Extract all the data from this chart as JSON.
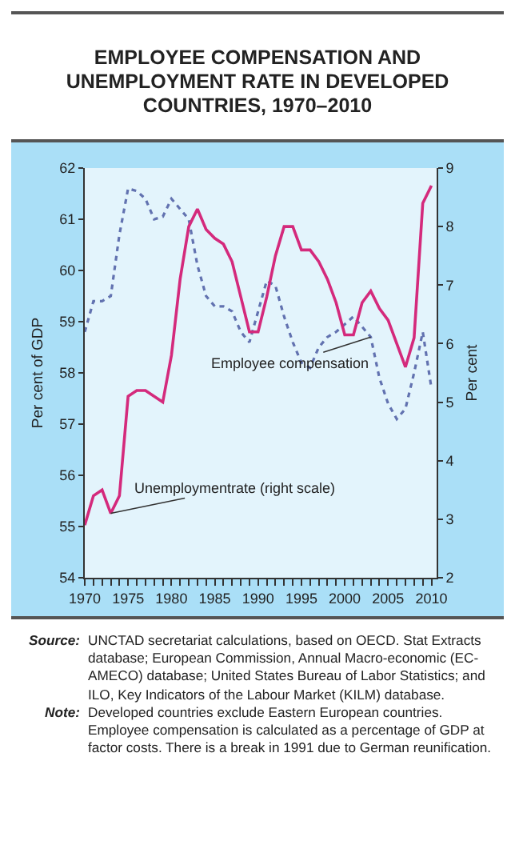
{
  "chart_data": {
    "type": "line",
    "title": "EMPLOYEE COMPENSATION AND UNEMPLOYMENT RATE IN DEVELOPED COUNTRIES, 1970–2010",
    "x": [
      1970,
      1971,
      1972,
      1973,
      1974,
      1975,
      1976,
      1977,
      1978,
      1979,
      1980,
      1981,
      1982,
      1983,
      1984,
      1985,
      1986,
      1987,
      1988,
      1989,
      1990,
      1991,
      1992,
      1993,
      1994,
      1995,
      1996,
      1997,
      1998,
      1999,
      2000,
      2001,
      2002,
      2003,
      2004,
      2005,
      2006,
      2007,
      2008,
      2009,
      2010
    ],
    "series": [
      {
        "name": "Unemploymentrate (right scale)",
        "color": "#d42a7c",
        "axis": "y2",
        "line_style": "solid",
        "values": [
          2.9,
          3.4,
          3.5,
          3.1,
          3.4,
          5.1,
          5.2,
          5.2,
          5.1,
          5.0,
          5.8,
          7.1,
          8.0,
          8.3,
          7.95,
          7.8,
          7.7,
          7.4,
          6.8,
          6.2,
          6.2,
          6.8,
          7.5,
          8.0,
          8.0,
          7.6,
          7.6,
          7.4,
          7.1,
          6.7,
          6.15,
          6.15,
          6.7,
          6.9,
          6.6,
          6.4,
          6.0,
          5.6,
          6.1,
          8.4,
          8.7
        ]
      },
      {
        "name": "Employee compensation",
        "color": "#6272b0",
        "axis": "y",
        "line_style": "dotted",
        "values": [
          58.8,
          59.4,
          59.4,
          59.5,
          60.7,
          61.6,
          61.55,
          61.4,
          61.0,
          61.05,
          61.4,
          61.2,
          61.0,
          60.1,
          59.5,
          59.3,
          59.3,
          59.2,
          58.8,
          58.6,
          59.2,
          59.8,
          59.7,
          59.1,
          58.6,
          58.2,
          58.1,
          58.5,
          58.7,
          58.8,
          58.95,
          59.1,
          58.9,
          58.7,
          57.9,
          57.4,
          57.1,
          57.3,
          58.0,
          58.8,
          57.7
        ]
      }
    ],
    "xlim": [
      1970,
      2010.6
    ],
    "xticks": [
      1970,
      {
        "value": 1971,
        "label": null
      },
      {
        "value": 1972,
        "label": null
      },
      {
        "value": 1973,
        "label": null
      },
      {
        "value": 1974,
        "label": null
      },
      1975,
      {
        "value": 1976,
        "label": null
      },
      {
        "value": 1977,
        "label": null
      },
      {
        "value": 1978,
        "label": null
      },
      {
        "value": 1979,
        "label": null
      },
      1980,
      {
        "value": 1981,
        "label": null
      },
      {
        "value": 1982,
        "label": null
      },
      {
        "value": 1983,
        "label": null
      },
      {
        "value": 1984,
        "label": null
      },
      1985,
      {
        "value": 1986,
        "label": null
      },
      {
        "value": 1987,
        "label": null
      },
      {
        "value": 1988,
        "label": null
      },
      {
        "value": 1989,
        "label": null
      },
      1990,
      {
        "value": 1991,
        "label": null
      },
      {
        "value": 1992,
        "label": null
      },
      {
        "value": 1993,
        "label": null
      },
      {
        "value": 1994,
        "label": null
      },
      1995,
      {
        "value": 1996,
        "label": null
      },
      {
        "value": 1997,
        "label": null
      },
      {
        "value": 1998,
        "label": null
      },
      {
        "value": 1999,
        "label": null
      },
      2000,
      {
        "value": 2001,
        "label": null
      },
      {
        "value": 2002,
        "label": null
      },
      {
        "value": 2003,
        "label": null
      },
      {
        "value": 2004,
        "label": null
      },
      2005,
      {
        "value": 2006,
        "label": null
      },
      {
        "value": 2007,
        "label": null
      },
      {
        "value": 2008,
        "label": null
      },
      {
        "value": 2009,
        "label": null
      },
      2010
    ],
    "ylim": [
      54,
      62
    ],
    "yticks": [
      54,
      55,
      56,
      57,
      58,
      59,
      60,
      61,
      62
    ],
    "y2lim": [
      2,
      9
    ],
    "y2ticks": [
      2,
      3,
      4,
      5,
      6,
      7,
      8,
      9
    ],
    "ylabel": "Per cent of GDP",
    "y2label": "Per cent",
    "grid": false,
    "legend": false,
    "marker": "none",
    "annotations": [
      "Source: UNCTAD secretariat calculations, based on OECD. Stat Extracts database; European Commission, Annual Macro-economic (EC-AMECO) database; United States Bureau of Labor Statistics; and ILO, Key Indicators of the Labour Market (KILM) database.",
      "Note: Developed countries exclude Eastern European countries. Employee compensation is calculated as a percentage of GDP at factor costs. There is a break in 1991 due to German reunification."
    ]
  }
}
